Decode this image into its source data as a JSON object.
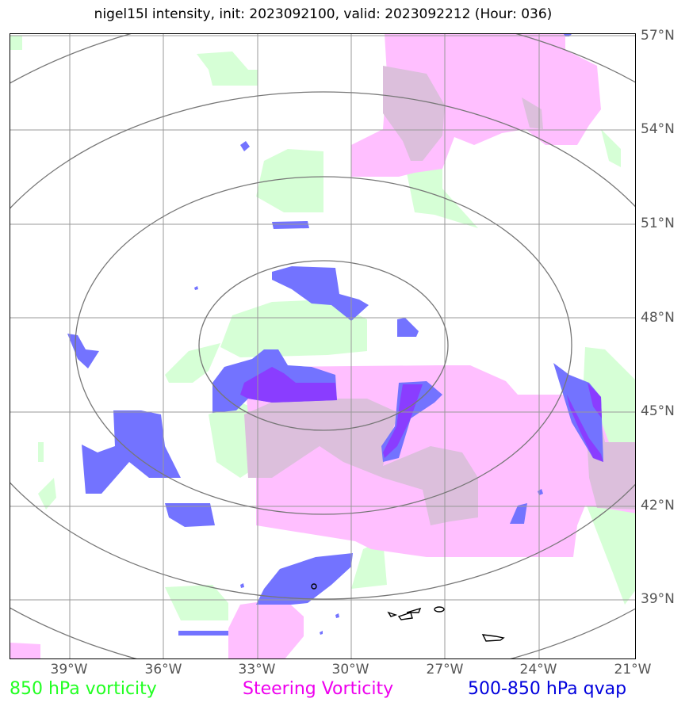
{
  "title": "nigel15l intensity, init: 2023092100, valid: 2023092212 (Hour: 036)",
  "lat_labels": [
    "57°N",
    "54°N",
    "51°N",
    "48°N",
    "45°N",
    "42°N",
    "39°N"
  ],
  "lon_labels": [
    "39°W",
    "36°W",
    "33°W",
    "30°W",
    "27°W",
    "24°W",
    "21°W"
  ],
  "legend": {
    "green": "850 hPa vorticity",
    "magenta": "Steering Vorticity",
    "blue": "500-850 hPa qvap"
  },
  "colors": {
    "vorticity_850": "#d6ffd6",
    "steering_vorticity": "#ffbfff",
    "qvap": "#7373ff",
    "qvap_overlap": "#8a3dff",
    "overlap_green_magenta": "#dcbfdc",
    "grid": "#999999",
    "rings": "#777777",
    "coast": "#000000"
  }
}
